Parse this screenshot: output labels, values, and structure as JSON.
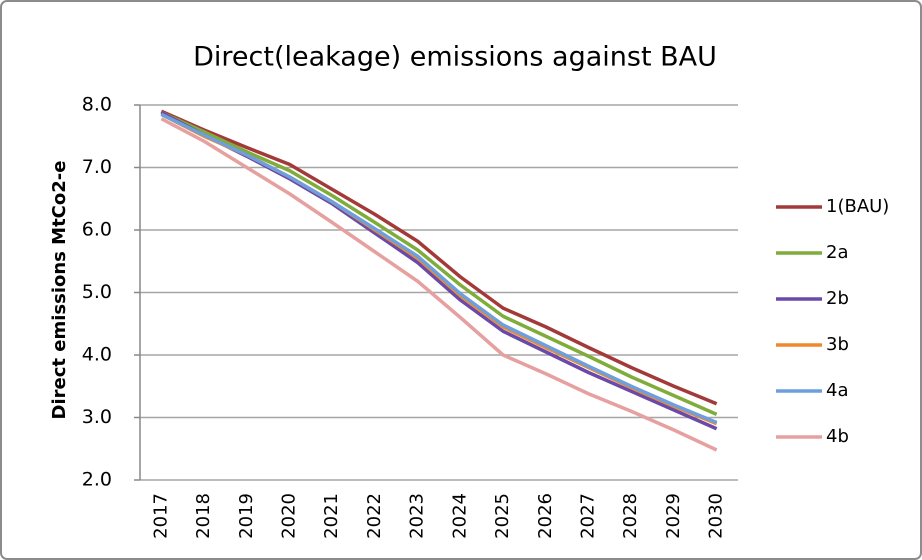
{
  "chart_data": {
    "type": "line",
    "title": "Direct(leakage) emissions against BAU",
    "y_label": "Direct emissions MtCo2-e",
    "categories": [
      "2017",
      "2018",
      "2019",
      "2020",
      "2021",
      "2022",
      "2023",
      "2024",
      "2025",
      "2026",
      "2027",
      "2028",
      "2029",
      "2030"
    ],
    "series": [
      {
        "name": "1(BAU)",
        "color": "#a33a3a",
        "values": [
          7.9,
          7.6,
          7.32,
          7.05,
          6.65,
          6.25,
          5.82,
          5.25,
          4.75,
          4.45,
          4.12,
          3.8,
          3.5,
          3.22
        ]
      },
      {
        "name": "2a",
        "color": "#7fac3b",
        "values": [
          7.88,
          7.57,
          7.25,
          6.95,
          6.55,
          6.12,
          5.68,
          5.12,
          4.62,
          4.3,
          3.98,
          3.65,
          3.35,
          3.05
        ]
      },
      {
        "name": "2b",
        "color": "#6a49a8",
        "values": [
          7.88,
          7.52,
          7.18,
          6.82,
          6.42,
          5.95,
          5.48,
          4.88,
          4.38,
          4.05,
          3.72,
          3.42,
          3.12,
          2.82
        ]
      },
      {
        "name": "3b",
        "color": "#ee8a2c",
        "values": [
          7.85,
          7.5,
          7.2,
          6.85,
          6.45,
          6.0,
          5.55,
          4.95,
          4.45,
          4.12,
          3.8,
          3.48,
          3.18,
          2.9
        ]
      },
      {
        "name": "4a",
        "color": "#6d9fdc",
        "values": [
          7.85,
          7.52,
          7.2,
          6.85,
          6.45,
          6.02,
          5.58,
          4.98,
          4.48,
          4.15,
          3.82,
          3.5,
          3.2,
          2.92
        ]
      },
      {
        "name": "4b",
        "color": "#e6a0a0",
        "values": [
          7.78,
          7.42,
          7.0,
          6.58,
          6.12,
          5.65,
          5.18,
          4.6,
          4.0,
          3.7,
          3.38,
          3.1,
          2.8,
          2.48
        ]
      }
    ],
    "ylim": [
      2,
      8
    ],
    "yticks": [
      {
        "value": 2,
        "label": "2.0"
      },
      {
        "value": 3,
        "label": "3.0"
      },
      {
        "value": 4,
        "label": "4.0"
      },
      {
        "value": 5,
        "label": "5.0"
      },
      {
        "value": 6,
        "label": "6.0"
      },
      {
        "value": 7,
        "label": "7.0"
      },
      {
        "value": 8,
        "label": "8.0"
      }
    ],
    "grid": true,
    "legend": "right"
  }
}
